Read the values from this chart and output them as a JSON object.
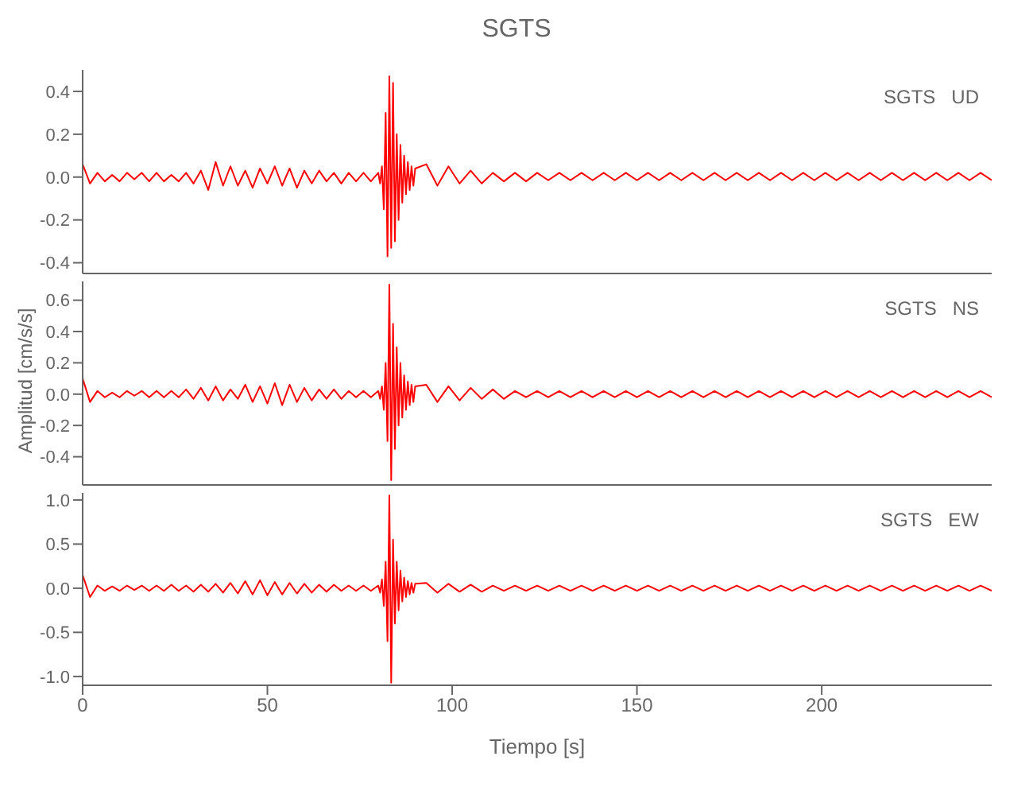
{
  "chart_data": [
    {
      "type": "line",
      "title": "SGTS",
      "annotations": [
        "SGTS   UD"
      ],
      "tick_labels": "y",
      "grid": false,
      "legend": false,
      "marker": "none",
      "x": [
        0,
        2,
        4,
        6,
        8,
        10,
        12,
        14,
        16,
        18,
        20,
        22,
        24,
        26,
        28,
        30,
        32,
        34,
        36,
        38,
        40,
        42,
        44,
        46,
        48,
        50,
        52,
        54,
        56,
        58,
        60,
        62,
        64,
        66,
        68,
        70,
        72,
        74,
        76,
        78,
        80,
        80.5,
        81,
        81.5,
        82,
        82.5,
        83,
        83.5,
        84,
        84.5,
        85,
        85.5,
        86,
        86.5,
        87,
        87.5,
        88,
        88.5,
        89,
        89.5,
        90,
        93,
        96,
        99,
        102,
        105,
        108,
        111,
        114,
        117,
        120,
        123,
        126,
        129,
        132,
        135,
        138,
        141,
        144,
        147,
        150,
        153,
        156,
        159,
        162,
        165,
        168,
        171,
        174,
        177,
        180,
        183,
        186,
        189,
        192,
        195,
        198,
        201,
        204,
        207,
        210,
        213,
        216,
        219,
        222,
        225,
        228,
        231,
        234,
        237,
        240,
        243,
        246
      ],
      "series": [
        {
          "color": "#ff0000",
          "values": [
            0.06,
            -0.03,
            0.02,
            -0.02,
            0.01,
            -0.02,
            0.02,
            -0.01,
            0.02,
            -0.02,
            0.02,
            -0.02,
            0.01,
            -0.02,
            0.02,
            -0.03,
            0.03,
            -0.06,
            0.07,
            -0.04,
            0.05,
            -0.04,
            0.03,
            -0.05,
            0.04,
            -0.03,
            0.05,
            -0.04,
            0.04,
            -0.05,
            0.03,
            -0.03,
            0.03,
            -0.02,
            0.02,
            -0.03,
            0.02,
            -0.02,
            0.02,
            -0.02,
            0.02,
            -0.03,
            0.05,
            -0.15,
            0.3,
            -0.37,
            0.47,
            -0.33,
            0.44,
            -0.3,
            0.2,
            -0.2,
            0.15,
            -0.12,
            0.1,
            -0.08,
            0.07,
            -0.06,
            0.05,
            -0.04,
            0.04,
            0.06,
            -0.04,
            0.05,
            -0.03,
            0.03,
            -0.03,
            0.02,
            -0.02,
            0.02,
            -0.02,
            0.02,
            -0.015,
            0.02,
            -0.015,
            0.02,
            -0.015,
            0.02,
            -0.015,
            0.02,
            -0.015,
            0.02,
            -0.015,
            0.02,
            -0.015,
            0.02,
            -0.015,
            0.02,
            -0.015,
            0.02,
            -0.015,
            0.02,
            -0.015,
            0.02,
            -0.015,
            0.02,
            -0.015,
            0.02,
            -0.015,
            0.02,
            -0.015,
            0.02,
            -0.015,
            0.02,
            -0.015,
            0.02,
            -0.015,
            0.02,
            -0.015,
            0.02,
            -0.015,
            0.02,
            -0.015
          ]
        }
      ],
      "xlim": [
        0,
        246
      ],
      "xticks": [
        0,
        50,
        100,
        150,
        200
      ],
      "ylim": [
        -0.45,
        0.5
      ],
      "yticks": [
        -0.4,
        -0.2,
        {
          "value": 0,
          "label": "0.0"
        },
        0.2,
        0.4
      ]
    },
    {
      "type": "line",
      "ylabel": "Amplitud [cm/s/s]",
      "annotations": [
        "SGTS   NS"
      ],
      "tick_labels": "y",
      "grid": false,
      "legend": false,
      "marker": "none",
      "x": [
        0,
        2,
        4,
        6,
        8,
        10,
        12,
        14,
        16,
        18,
        20,
        22,
        24,
        26,
        28,
        30,
        32,
        34,
        36,
        38,
        40,
        42,
        44,
        46,
        48,
        50,
        52,
        54,
        56,
        58,
        60,
        62,
        64,
        66,
        68,
        70,
        72,
        74,
        76,
        78,
        80,
        80.5,
        81,
        81.5,
        82,
        82.5,
        83,
        83.5,
        84,
        84.5,
        85,
        85.5,
        86,
        86.5,
        87,
        87.5,
        88,
        88.5,
        89,
        89.5,
        90,
        93,
        96,
        99,
        102,
        105,
        108,
        111,
        114,
        117,
        120,
        123,
        126,
        129,
        132,
        135,
        138,
        141,
        144,
        147,
        150,
        153,
        156,
        159,
        162,
        165,
        168,
        171,
        174,
        177,
        180,
        183,
        186,
        189,
        192,
        195,
        198,
        201,
        204,
        207,
        210,
        213,
        216,
        219,
        222,
        225,
        228,
        231,
        234,
        237,
        240,
        243,
        246
      ],
      "series": [
        {
          "color": "#ff0000",
          "values": [
            0.1,
            -0.05,
            0.02,
            -0.02,
            0.01,
            -0.02,
            0.02,
            -0.01,
            0.02,
            -0.02,
            0.02,
            -0.02,
            0.02,
            -0.02,
            0.03,
            -0.03,
            0.04,
            -0.04,
            0.05,
            -0.04,
            0.03,
            -0.03,
            0.06,
            -0.05,
            0.05,
            -0.06,
            0.07,
            -0.07,
            0.06,
            -0.05,
            0.04,
            -0.04,
            0.03,
            -0.03,
            0.03,
            -0.03,
            0.02,
            -0.02,
            0.02,
            -0.02,
            0.02,
            -0.03,
            0.05,
            -0.1,
            0.2,
            -0.3,
            0.7,
            -0.55,
            0.45,
            -0.35,
            0.3,
            -0.2,
            0.2,
            -0.15,
            0.12,
            -0.1,
            0.08,
            -0.07,
            0.06,
            -0.05,
            0.05,
            0.06,
            -0.05,
            0.05,
            -0.04,
            0.04,
            -0.03,
            0.03,
            -0.03,
            0.02,
            -0.02,
            0.02,
            -0.02,
            0.02,
            -0.02,
            0.02,
            -0.02,
            0.02,
            -0.02,
            0.02,
            -0.02,
            0.02,
            -0.02,
            0.02,
            -0.02,
            0.02,
            -0.02,
            0.02,
            -0.02,
            0.02,
            -0.02,
            0.02,
            -0.02,
            0.02,
            -0.02,
            0.02,
            -0.02,
            0.02,
            -0.02,
            0.02,
            -0.02,
            0.02,
            -0.02,
            0.02,
            -0.02,
            0.02,
            -0.02,
            0.02,
            -0.02,
            0.02,
            -0.02,
            0.02,
            -0.02
          ]
        }
      ],
      "xlim": [
        0,
        246
      ],
      "xticks": [
        0,
        50,
        100,
        150,
        200
      ],
      "ylim": [
        -0.58,
        0.72
      ],
      "yticks": [
        -0.4,
        -0.2,
        {
          "value": 0,
          "label": "0.0"
        },
        0.2,
        0.4,
        0.6
      ]
    },
    {
      "type": "line",
      "xlabel": "Tiempo [s]",
      "annotations": [
        "SGTS   EW"
      ],
      "grid": false,
      "legend": false,
      "marker": "none",
      "x": [
        0,
        2,
        4,
        6,
        8,
        10,
        12,
        14,
        16,
        18,
        20,
        22,
        24,
        26,
        28,
        30,
        32,
        34,
        36,
        38,
        40,
        42,
        44,
        46,
        48,
        50,
        52,
        54,
        56,
        58,
        60,
        62,
        64,
        66,
        68,
        70,
        72,
        74,
        76,
        78,
        80,
        80.5,
        81,
        81.5,
        82,
        82.5,
        83,
        83.5,
        84,
        84.5,
        85,
        85.5,
        86,
        86.5,
        87,
        87.5,
        88,
        88.5,
        89,
        89.5,
        90,
        93,
        96,
        99,
        102,
        105,
        108,
        111,
        114,
        117,
        120,
        123,
        126,
        129,
        132,
        135,
        138,
        141,
        144,
        147,
        150,
        153,
        156,
        159,
        162,
        165,
        168,
        171,
        174,
        177,
        180,
        183,
        186,
        189,
        192,
        195,
        198,
        201,
        204,
        207,
        210,
        213,
        216,
        219,
        222,
        225,
        228,
        231,
        234,
        237,
        240,
        243,
        246
      ],
      "series": [
        {
          "color": "#ff0000",
          "values": [
            0.15,
            -0.1,
            0.03,
            -0.03,
            0.02,
            -0.03,
            0.03,
            -0.02,
            0.03,
            -0.03,
            0.03,
            -0.03,
            0.04,
            -0.03,
            0.03,
            -0.04,
            0.04,
            -0.04,
            0.05,
            -0.05,
            0.06,
            -0.06,
            0.08,
            -0.07,
            0.09,
            -0.08,
            0.07,
            -0.07,
            0.06,
            -0.06,
            0.05,
            -0.05,
            0.04,
            -0.04,
            0.04,
            -0.03,
            0.03,
            -0.03,
            0.03,
            -0.03,
            0.03,
            -0.05,
            0.1,
            -0.2,
            0.3,
            -0.6,
            1.05,
            -1.07,
            0.55,
            -0.4,
            0.3,
            -0.25,
            0.2,
            -0.15,
            0.12,
            -0.1,
            0.08,
            -0.07,
            0.06,
            -0.05,
            0.05,
            0.06,
            -0.05,
            0.05,
            -0.04,
            0.04,
            -0.04,
            0.03,
            -0.03,
            0.03,
            -0.03,
            0.03,
            -0.03,
            0.03,
            -0.03,
            0.03,
            -0.03,
            0.03,
            -0.03,
            0.03,
            -0.03,
            0.03,
            -0.03,
            0.03,
            -0.03,
            0.03,
            -0.03,
            0.03,
            -0.03,
            0.03,
            -0.03,
            0.03,
            -0.03,
            0.03,
            -0.03,
            0.03,
            -0.03,
            0.03,
            -0.03,
            0.03,
            -0.03,
            0.03,
            -0.03,
            0.03,
            -0.03,
            0.03,
            -0.03,
            0.03,
            -0.03,
            0.03,
            -0.03,
            0.03,
            -0.03
          ]
        }
      ],
      "xlim": [
        0,
        246
      ],
      "xticks": [
        0,
        50,
        100,
        150,
        200
      ],
      "ylim": [
        -1.1,
        1.08
      ],
      "yticks": [
        {
          "value": -1,
          "label": "-1.0"
        },
        -0.5,
        {
          "value": 0,
          "label": "0.0"
        },
        0.5,
        {
          "value": 1,
          "label": "1.0"
        }
      ]
    }
  ]
}
